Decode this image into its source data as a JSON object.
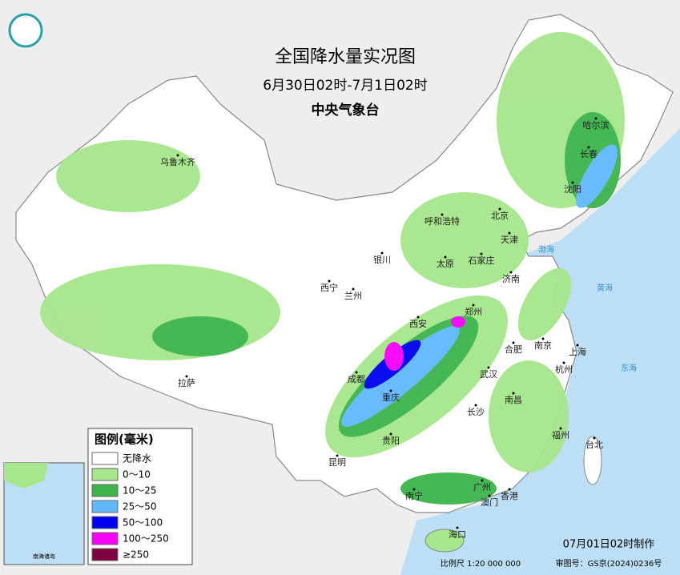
{
  "header": {
    "title": "全国降水量实况图",
    "subtitle": "6月30日02时-7月1日02时",
    "issuer": "中央气象台"
  },
  "cities": [
    "乌鲁木齐",
    "哈尔滨",
    "长春",
    "沈阳",
    "呼和浩特",
    "北京",
    "天津",
    "银川",
    "太原",
    "石家庄",
    "济南",
    "西宁",
    "兰州",
    "郑州",
    "西安",
    "南京",
    "合肥",
    "上海",
    "杭州",
    "武汉",
    "成都",
    "拉萨",
    "重庆",
    "长沙",
    "南昌",
    "贵阳",
    "福州",
    "台北",
    "昆明",
    "南宁",
    "广州",
    "香港",
    "澳门",
    "海口"
  ],
  "seas": [
    "渤海",
    "黄海",
    "东海"
  ],
  "legend": {
    "title": "图例(毫米)",
    "items": [
      {
        "label": "无降水",
        "color": "#ffffff"
      },
      {
        "label": "0～10",
        "color": "#a6e68c"
      },
      {
        "label": "10～25",
        "color": "#3cb44b"
      },
      {
        "label": "25～50",
        "color": "#61b8ff"
      },
      {
        "label": "50～100",
        "color": "#0000f0"
      },
      {
        "label": "100～250",
        "color": "#fa00fa"
      },
      {
        "label": "≥250",
        "color": "#800040"
      }
    ]
  },
  "inset": {
    "label": "南海诸岛"
  },
  "footer": {
    "made": "07月01日02时制作",
    "scale": "比例尺 1:20 000 000",
    "approval": "审图号：GS京(2024)0236号"
  }
}
